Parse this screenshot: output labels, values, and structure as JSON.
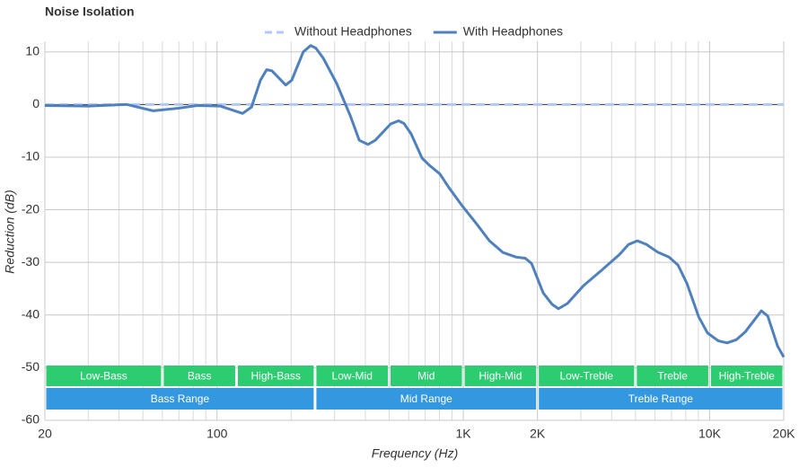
{
  "chart_data": {
    "type": "line",
    "title": "Noise Isolation",
    "xlabel": "Frequency (Hz)",
    "ylabel": "Reduction (dB)",
    "xscale": "log",
    "xlim": [
      20,
      20000
    ],
    "ylim": [
      -60,
      12
    ],
    "xticks": [
      20,
      100,
      {
        "value": 1000,
        "label": "1K"
      },
      {
        "value": 2000,
        "label": "2K"
      },
      {
        "value": 10000,
        "label": "10K"
      },
      {
        "value": 20000,
        "label": "20K"
      }
    ],
    "xminor": [
      30,
      40,
      50,
      60,
      70,
      80,
      90,
      200,
      300,
      400,
      500,
      600,
      700,
      800,
      900,
      3000,
      4000,
      5000,
      6000,
      7000,
      8000,
      9000
    ],
    "yticks": [
      10,
      0,
      -10,
      -20,
      -30,
      -40,
      -50,
      -60
    ],
    "grid": true,
    "legend": "top",
    "series": [
      {
        "name": "Without Headphones",
        "color": "#b3c6ff",
        "dashed": true,
        "x": [
          20,
          20000
        ],
        "values": [
          0,
          0
        ]
      },
      {
        "name": "With Headphones",
        "color": "#4f81bd",
        "dashed": false,
        "x": [
          20,
          30,
          43,
          55,
          70,
          83,
          103,
          127,
          138,
          150,
          159,
          167,
          190,
          201,
          224,
          240,
          252,
          270,
          306,
          348,
          378,
          410,
          439,
          507,
          546,
          574,
          614,
          680,
          726,
          803,
          874,
          991,
          1124,
          1276,
          1446,
          1640,
          1784,
          1892,
          2110,
          2296,
          2434,
          2648,
          3078,
          3640,
          4306,
          4684,
          5093,
          5546,
          6125,
          6840,
          7438,
          8090,
          9020,
          9800,
          10840,
          11780,
          12830,
          13960,
          16220,
          17220,
          18880,
          20000
        ],
        "values": [
          -0.2,
          -0.3,
          0,
          -1.2,
          -0.7,
          -0.2,
          -0.3,
          -1.7,
          -0.5,
          4.6,
          6.6,
          6.4,
          3.7,
          4.6,
          10,
          11.2,
          10.7,
          8.8,
          4,
          -2.2,
          -6.8,
          -7.6,
          -6.8,
          -3.7,
          -3.1,
          -3.6,
          -5.6,
          -10.2,
          -11.5,
          -13.2,
          -15.8,
          -19.3,
          -22.5,
          -25.9,
          -28.1,
          -29,
          -29.2,
          -30.2,
          -35.8,
          -38,
          -38.8,
          -37.8,
          -34.4,
          -31.5,
          -28.5,
          -26.6,
          -25.9,
          -26.6,
          -28,
          -29,
          -30.5,
          -34,
          -40.3,
          -43.4,
          -44.9,
          -45.3,
          -44.7,
          -43.2,
          -39.2,
          -40.2,
          -45.9,
          -48
        ]
      }
    ],
    "bands": [
      {
        "label": "Low-Bass",
        "from": 20,
        "to": 60
      },
      {
        "label": "Bass",
        "from": 60,
        "to": 120
      },
      {
        "label": "High-Bass",
        "from": 120,
        "to": 250
      },
      {
        "label": "Low-Mid",
        "from": 250,
        "to": 500
      },
      {
        "label": "Mid",
        "from": 500,
        "to": 1000
      },
      {
        "label": "High-Mid",
        "from": 1000,
        "to": 2000
      },
      {
        "label": "Low-Treble",
        "from": 2000,
        "to": 5000
      },
      {
        "label": "Treble",
        "from": 5000,
        "to": 10000
      },
      {
        "label": "High-Treble",
        "from": 10000,
        "to": 20000
      }
    ],
    "band_color": "#2ecc71",
    "ranges": [
      {
        "label": "Bass Range",
        "from": 20,
        "to": 250
      },
      {
        "label": "Mid Range",
        "from": 250,
        "to": 2000
      },
      {
        "label": "Treble Range",
        "from": 2000,
        "to": 20000
      }
    ],
    "range_color": "#3498e0"
  }
}
